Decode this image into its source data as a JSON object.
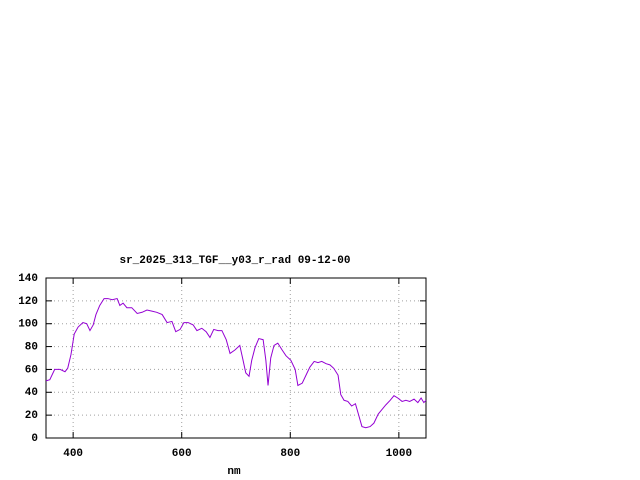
{
  "chart_data": {
    "type": "line",
    "title": "sr_2025_313_TGF__y03_r_rad 09-12-00",
    "x_label": "nm",
    "x": [
      350,
      357,
      366,
      376,
      385,
      390,
      396,
      402,
      409,
      418,
      425,
      431,
      437,
      442,
      449,
      457,
      464,
      472,
      481,
      486,
      492,
      499,
      508,
      518,
      527,
      536,
      545,
      554,
      564,
      573,
      582,
      589,
      597,
      604,
      612,
      621,
      628,
      637,
      645,
      652,
      659,
      667,
      674,
      682,
      689,
      698,
      707,
      713,
      718,
      724,
      729,
      735,
      742,
      750,
      755,
      759,
      764,
      770,
      777,
      785,
      792,
      801,
      809,
      814,
      822,
      829,
      836,
      844,
      851,
      858,
      866,
      873,
      880,
      888,
      893,
      899,
      906,
      913,
      920,
      926,
      932,
      939,
      947,
      954,
      962,
      969,
      976,
      984,
      991,
      998,
      1006,
      1013,
      1020,
      1028,
      1035,
      1041,
      1046,
      1050
    ],
    "series": [
      {
        "color": "#9400d3",
        "values": [
          50,
          51,
          60,
          60,
          58,
          61,
          73,
          91,
          97,
          101,
          100,
          94,
          99,
          108,
          116,
          122,
          122,
          121,
          122,
          116,
          118,
          114,
          114,
          109,
          110,
          112,
          111,
          110,
          108,
          101,
          102,
          93,
          95,
          101,
          101,
          99,
          94,
          96,
          93,
          88,
          95,
          94,
          94,
          86,
          74,
          77,
          81,
          68,
          57,
          54,
          68,
          79,
          87,
          86,
          68,
          46,
          70,
          81,
          83,
          77,
          72,
          68,
          60,
          46,
          48,
          55,
          62,
          67,
          66,
          67,
          65,
          64,
          61,
          55,
          38,
          33,
          32,
          28,
          30,
          20,
          10,
          9,
          10,
          13,
          21,
          25,
          29,
          33,
          37,
          35,
          32,
          33,
          32,
          34,
          31,
          35,
          31,
          33
        ]
      }
    ],
    "xlim": [
      350,
      1050
    ],
    "xticks": [
      400,
      600,
      800,
      1000
    ],
    "ylim": [
      0,
      140
    ],
    "yticks": [
      0,
      20,
      40,
      60,
      80,
      100,
      120,
      140
    ],
    "grid": true
  }
}
